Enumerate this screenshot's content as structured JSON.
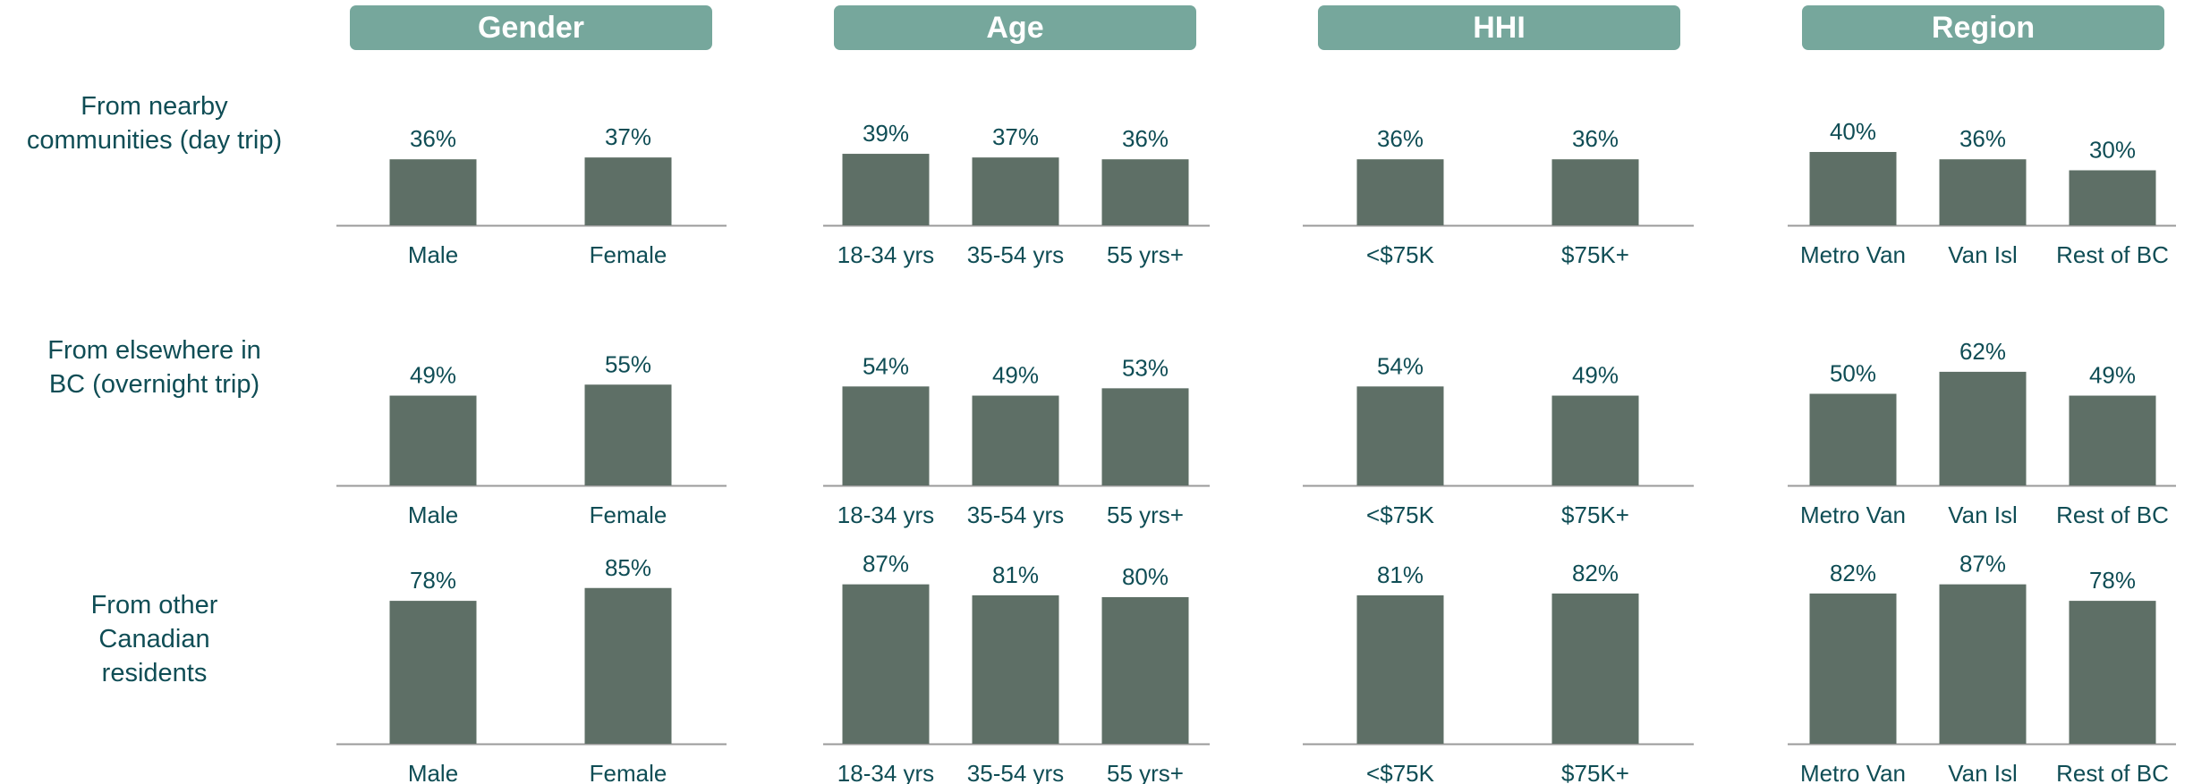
{
  "colors": {
    "header_bg": "#76a79c",
    "bar": "#5e6f66",
    "text": "#0f4d55",
    "axis": "#9a9a9a"
  },
  "groups": [
    {
      "title": "Gender",
      "categories": [
        "Male",
        "Female"
      ]
    },
    {
      "title": "Age",
      "categories": [
        "18-34 yrs",
        "35-54 yrs",
        "55 yrs+"
      ]
    },
    {
      "title": "HHI",
      "categories": [
        "<$75K",
        "$75K+"
      ]
    },
    {
      "title": "Region",
      "categories": [
        "Metro Van",
        "Van Isl",
        "Rest of BC"
      ]
    }
  ],
  "rows": [
    {
      "label": "From nearby communities (day trip)"
    },
    {
      "label": "From elsewhere in BC (overnight trip)"
    },
    {
      "label": "From other Canadian residents"
    }
  ],
  "chart_data": {
    "type": "bar",
    "value_format": "percent",
    "facets": [
      {
        "row": "From nearby communities (day trip)",
        "group": "Gender",
        "categories": [
          "Male",
          "Female"
        ],
        "values": [
          36,
          37
        ]
      },
      {
        "row": "From nearby communities (day trip)",
        "group": "Age",
        "categories": [
          "18-34 yrs",
          "35-54 yrs",
          "55 yrs+"
        ],
        "values": [
          39,
          37,
          36
        ]
      },
      {
        "row": "From nearby communities (day trip)",
        "group": "HHI",
        "categories": [
          "<$75K",
          "$75K+"
        ],
        "values": [
          36,
          36
        ]
      },
      {
        "row": "From nearby communities (day trip)",
        "group": "Region",
        "categories": [
          "Metro Van",
          "Van Isl",
          "Rest of BC"
        ],
        "values": [
          40,
          36,
          30
        ]
      },
      {
        "row": "From elsewhere in BC (overnight trip)",
        "group": "Gender",
        "categories": [
          "Male",
          "Female"
        ],
        "values": [
          49,
          55
        ]
      },
      {
        "row": "From elsewhere in BC (overnight trip)",
        "group": "Age",
        "categories": [
          "18-34 yrs",
          "35-54 yrs",
          "55 yrs+"
        ],
        "values": [
          54,
          49,
          53
        ]
      },
      {
        "row": "From elsewhere in BC (overnight trip)",
        "group": "HHI",
        "categories": [
          "<$75K",
          "$75K+"
        ],
        "values": [
          54,
          49
        ]
      },
      {
        "row": "From elsewhere in BC (overnight trip)",
        "group": "Region",
        "categories": [
          "Metro Van",
          "Van Isl",
          "Rest of BC"
        ],
        "values": [
          50,
          62,
          49
        ]
      },
      {
        "row": "From other Canadian residents",
        "group": "Gender",
        "categories": [
          "Male",
          "Female"
        ],
        "values": [
          78,
          85
        ]
      },
      {
        "row": "From other Canadian residents",
        "group": "Age",
        "categories": [
          "18-34 yrs",
          "35-54 yrs",
          "55 yrs+"
        ],
        "values": [
          87,
          81,
          80
        ]
      },
      {
        "row": "From other Canadian residents",
        "group": "HHI",
        "categories": [
          "<$75K",
          "$75K+"
        ],
        "values": [
          81,
          82
        ]
      },
      {
        "row": "From other Canadian residents",
        "group": "Region",
        "categories": [
          "Metro Van",
          "Van Isl",
          "Rest of BC"
        ],
        "values": [
          82,
          87,
          78
        ]
      }
    ]
  }
}
